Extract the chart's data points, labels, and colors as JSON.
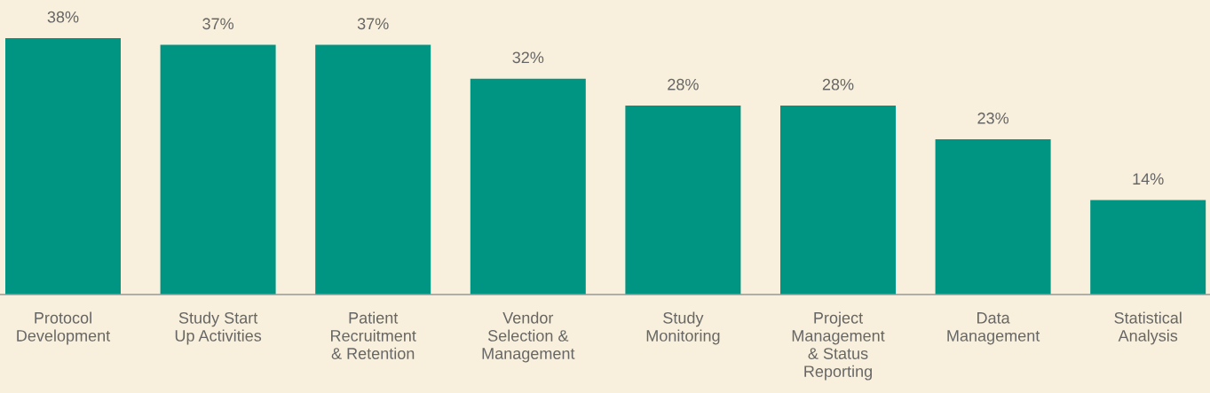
{
  "chart_data": {
    "type": "bar",
    "categories": [
      "Protocol\nDevelopment",
      "Study Start\nUp Activities",
      "Patient\nRecruitment\n& Retention",
      "Vendor\nSelection &\nManagement",
      "Study\nMonitoring",
      "Project\nManagement\n& Status\nReporting",
      "Data\nManagement",
      "Statistical\nAnalysis"
    ],
    "values": [
      38,
      37,
      37,
      32,
      28,
      28,
      23,
      14
    ],
    "value_labels": [
      "38%",
      "37%",
      "37%",
      "32%",
      "28%",
      "28%",
      "23%",
      "14%"
    ],
    "color": "#009483",
    "grid": false,
    "legend": false
  }
}
